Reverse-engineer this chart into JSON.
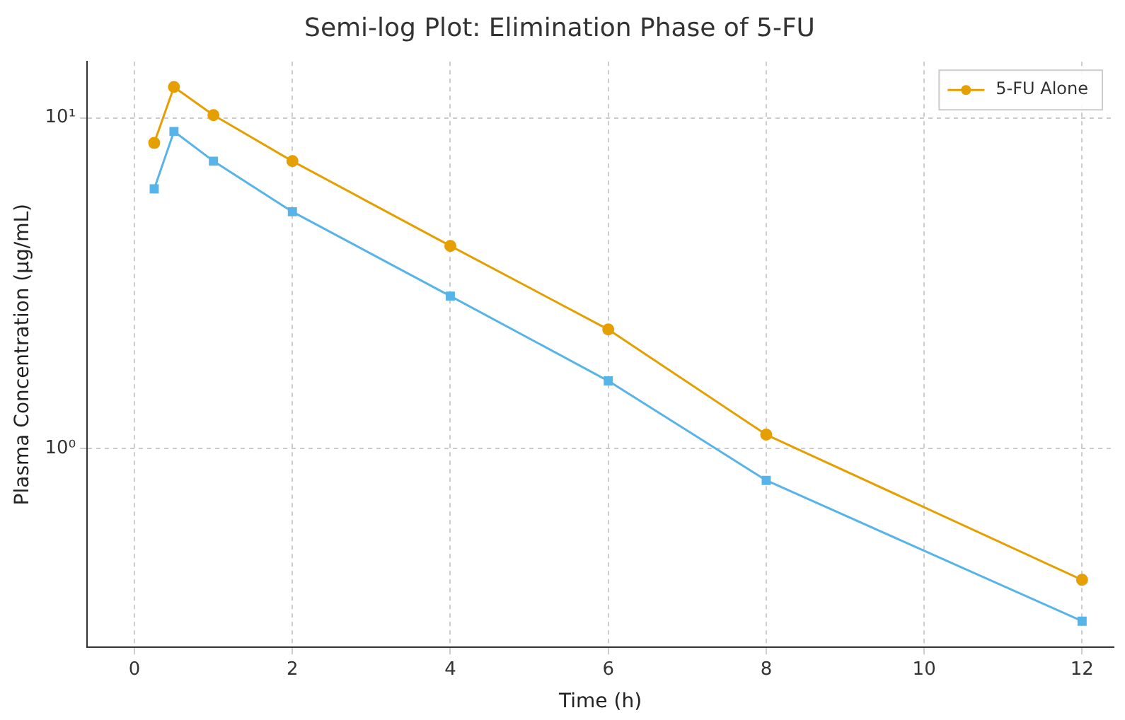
{
  "chart_data": {
    "type": "line",
    "title": "Semi-log Plot: Elimination Phase of 5-FU",
    "xlabel": "Time (h)",
    "ylabel": "Plasma Concentration (µg/mL)",
    "x": [
      0.25,
      0.5,
      1,
      2,
      4,
      6,
      8,
      12
    ],
    "series": [
      {
        "name": "5-FU Alone",
        "color": "#e69f00",
        "marker": "circle",
        "values": [
          8.4,
          12.4,
          10.2,
          7.4,
          4.1,
          2.29,
          1.1,
          0.4
        ]
      },
      {
        "color": "#56b4e9",
        "marker": "square",
        "values": [
          6.1,
          9.1,
          7.4,
          5.2,
          2.89,
          1.6,
          0.8,
          0.3
        ]
      }
    ],
    "log": "y",
    "xlim": [
      -0.6,
      12.4
    ],
    "xticks": [
      0,
      2,
      4,
      6,
      8,
      10,
      12
    ],
    "ylim": [
      0.25,
      14.8
    ],
    "yticks": [
      {
        "value": 1,
        "label": "10⁰"
      },
      {
        "value": 10,
        "label": "10¹"
      }
    ],
    "grid": true,
    "legend": "top right",
    "line_style": "solid"
  }
}
